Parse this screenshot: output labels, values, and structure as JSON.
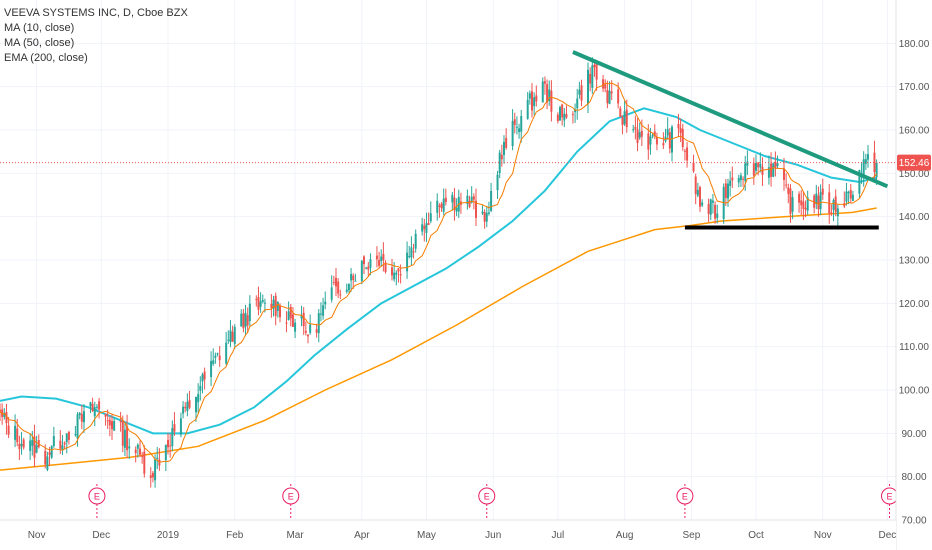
{
  "header": {
    "title": "VEEVA SYSTEMS INC, D, Cboe BZX",
    "indicators": [
      "MA (10, close)",
      "MA (50, close)",
      "EMA (200, close)"
    ]
  },
  "price_tag": "152.46",
  "colors": {
    "up": "#26a69a",
    "down": "#ef5350",
    "ma10": "#f57c00",
    "ma50": "#26c6da",
    "ema200": "#ff9800",
    "trendline": "#1e9b7e",
    "support": "#000000",
    "price_line": "#ef5350",
    "earnings": "#e91e63"
  },
  "earnings_label": "E",
  "chart_data": {
    "type": "candlestick",
    "title": "VEEVA SYSTEMS INC, D, Cboe BZX",
    "ylim": [
      70,
      190
    ],
    "yticks": [
      70,
      80,
      90,
      100,
      110,
      120,
      130,
      140,
      150,
      160,
      170,
      180
    ],
    "ytick_labels": [
      "70.00",
      "80.00",
      "90.00",
      "100.00",
      "110.00",
      "120.00",
      "130.00",
      "140.00",
      "150.00",
      "160.00",
      "170.00",
      "180.00"
    ],
    "x_domain": [
      "2018-10-15",
      "2019-12-05"
    ],
    "xticks": [
      {
        "date": "2018-11-01",
        "label": "Nov"
      },
      {
        "date": "2018-12-01",
        "label": "Dec"
      },
      {
        "date": "2019-01-01",
        "label": "2019"
      },
      {
        "date": "2019-02-01",
        "label": "Feb"
      },
      {
        "date": "2019-03-01",
        "label": "Mar"
      },
      {
        "date": "2019-04-01",
        "label": "Apr"
      },
      {
        "date": "2019-05-01",
        "label": "May"
      },
      {
        "date": "2019-06-01",
        "label": "Jun"
      },
      {
        "date": "2019-07-01",
        "label": "Jul"
      },
      {
        "date": "2019-08-01",
        "label": "Aug"
      },
      {
        "date": "2019-09-01",
        "label": "Sep"
      },
      {
        "date": "2019-10-01",
        "label": "Oct"
      },
      {
        "date": "2019-11-01",
        "label": "Nov"
      },
      {
        "date": "2019-12-01",
        "label": "Dec"
      }
    ],
    "last_price": 152.46,
    "earnings_dates": [
      "2018-11-29",
      "2019-02-27",
      "2019-05-29",
      "2019-08-29",
      "2019-12-02"
    ],
    "anchors": [
      [
        "2018-10-15",
        94
      ],
      [
        "2018-10-25",
        88
      ],
      [
        "2018-11-05",
        85
      ],
      [
        "2018-11-15",
        90
      ],
      [
        "2018-11-28",
        96
      ],
      [
        "2018-12-07",
        92
      ],
      [
        "2018-12-17",
        86
      ],
      [
        "2018-12-24",
        81
      ],
      [
        "2019-01-02",
        89
      ],
      [
        "2019-01-15",
        100
      ],
      [
        "2019-01-28",
        111
      ],
      [
        "2019-02-08",
        118
      ],
      [
        "2019-02-18",
        120
      ],
      [
        "2019-02-27",
        117
      ],
      [
        "2019-03-08",
        113
      ],
      [
        "2019-03-18",
        122
      ],
      [
        "2019-03-28",
        127
      ],
      [
        "2019-04-08",
        131
      ],
      [
        "2019-04-18",
        127
      ],
      [
        "2019-04-25",
        134
      ],
      [
        "2019-05-06",
        144
      ],
      [
        "2019-05-15",
        144
      ],
      [
        "2019-05-22",
        143
      ],
      [
        "2019-05-28",
        138
      ],
      [
        "2019-06-03",
        152
      ],
      [
        "2019-06-12",
        162
      ],
      [
        "2019-06-24",
        170
      ],
      [
        "2019-07-03",
        162
      ],
      [
        "2019-07-10",
        167
      ],
      [
        "2019-07-17",
        174
      ],
      [
        "2019-07-26",
        166
      ],
      [
        "2019-08-05",
        160
      ],
      [
        "2019-08-14",
        157
      ],
      [
        "2019-08-27",
        159
      ],
      [
        "2019-09-05",
        143
      ],
      [
        "2019-09-12",
        141
      ],
      [
        "2019-09-20",
        150
      ],
      [
        "2019-10-01",
        152
      ],
      [
        "2019-10-10",
        151
      ],
      [
        "2019-10-18",
        142
      ],
      [
        "2019-10-28",
        144
      ],
      [
        "2019-11-06",
        142
      ],
      [
        "2019-11-13",
        145
      ],
      [
        "2019-11-20",
        152
      ],
      [
        "2019-11-26",
        152.46
      ]
    ],
    "series": [
      {
        "name": "MA (10, close)",
        "kind": "ma10"
      },
      {
        "name": "MA (50, close)",
        "points": [
          [
            "2018-10-15",
            97.5
          ],
          [
            "2018-10-25",
            98.5
          ],
          [
            "2018-11-10",
            98
          ],
          [
            "2018-11-25",
            96
          ],
          [
            "2018-12-10",
            93
          ],
          [
            "2018-12-25",
            90
          ],
          [
            "2019-01-10",
            90
          ],
          [
            "2019-01-25",
            92
          ],
          [
            "2019-02-10",
            96
          ],
          [
            "2019-02-25",
            102
          ],
          [
            "2019-03-10",
            108
          ],
          [
            "2019-03-25",
            114
          ],
          [
            "2019-04-10",
            120
          ],
          [
            "2019-04-25",
            124
          ],
          [
            "2019-05-10",
            128
          ],
          [
            "2019-05-25",
            133
          ],
          [
            "2019-06-10",
            139
          ],
          [
            "2019-06-25",
            146
          ],
          [
            "2019-07-10",
            155
          ],
          [
            "2019-07-25",
            162
          ],
          [
            "2019-08-10",
            165
          ],
          [
            "2019-08-25",
            163
          ],
          [
            "2019-09-05",
            160
          ],
          [
            "2019-09-20",
            157
          ],
          [
            "2019-10-05",
            154
          ],
          [
            "2019-10-20",
            152
          ],
          [
            "2019-11-05",
            149
          ],
          [
            "2019-11-18",
            148
          ],
          [
            "2019-11-26",
            149
          ]
        ]
      },
      {
        "name": "EMA (200, close)",
        "points": [
          [
            "2018-10-15",
            81.5
          ],
          [
            "2018-11-15",
            83
          ],
          [
            "2018-12-15",
            84.5
          ],
          [
            "2019-01-15",
            87
          ],
          [
            "2019-02-15",
            93
          ],
          [
            "2019-03-15",
            100
          ],
          [
            "2019-04-15",
            107
          ],
          [
            "2019-05-15",
            115
          ],
          [
            "2019-06-15",
            124
          ],
          [
            "2019-07-15",
            132
          ],
          [
            "2019-08-15",
            137
          ],
          [
            "2019-09-01",
            138
          ],
          [
            "2019-09-15",
            139
          ],
          [
            "2019-10-15",
            140
          ],
          [
            "2019-11-15",
            141
          ],
          [
            "2019-11-26",
            142
          ]
        ]
      }
    ],
    "annotations": [
      {
        "type": "trendline",
        "from": [
          "2019-07-08",
          178
        ],
        "to": [
          "2019-12-01",
          147
        ]
      },
      {
        "type": "support",
        "from": [
          "2019-08-29",
          137.5
        ],
        "to": [
          "2019-11-27",
          137.5
        ]
      }
    ]
  }
}
